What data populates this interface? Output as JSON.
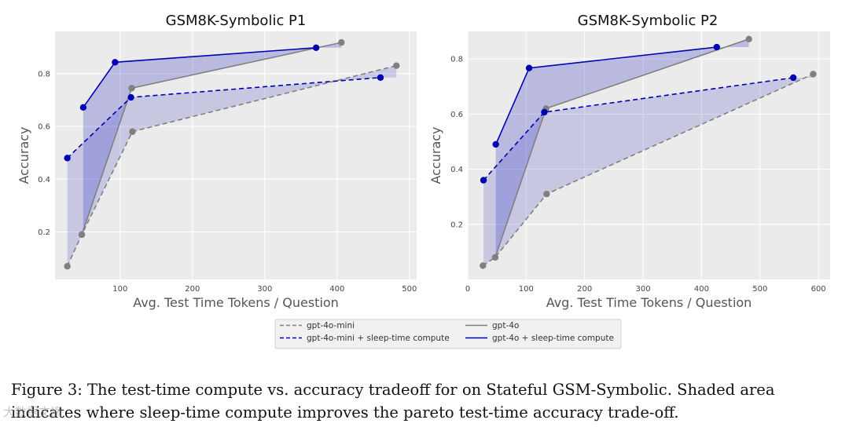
{
  "chart_data": [
    {
      "type": "line",
      "title": "GSM8K-Symbolic P1",
      "xlabel": "Avg. Test Time Tokens / Question",
      "ylabel": "Accuracy",
      "xlim": [
        10,
        510
      ],
      "ylim": [
        0.02,
        0.96
      ],
      "xticks": [
        100,
        200,
        300,
        400,
        500
      ],
      "yticks": [
        0.2,
        0.4,
        0.6,
        0.8
      ],
      "grid": true,
      "series": [
        {
          "name": "gpt-4o-mini",
          "color": "#808080",
          "dash": true,
          "x": [
            27,
            47,
            117,
            482
          ],
          "y": [
            0.07,
            0.19,
            0.58,
            0.83
          ]
        },
        {
          "name": "gpt-4o",
          "color": "#808080",
          "dash": false,
          "x": [
            47,
            116,
            406
          ],
          "y": [
            0.19,
            0.745,
            0.918
          ]
        },
        {
          "name": "gpt-4o-mini + sleep-time compute",
          "color": "#0000b3",
          "dash": true,
          "x": [
            27,
            115,
            460
          ],
          "y": [
            0.48,
            0.71,
            0.785
          ]
        },
        {
          "name": "gpt-4o + sleep-time compute",
          "color": "#0000b3",
          "dash": false,
          "x": [
            49,
            93,
            371
          ],
          "y": [
            0.672,
            0.843,
            0.898
          ]
        }
      ]
    },
    {
      "type": "line",
      "title": "GSM8K-Symbolic P2",
      "xlabel": "Avg. Test Time Tokens / Question",
      "ylabel": "Accuracy",
      "xlim": [
        0,
        620
      ],
      "ylim": [
        0.0,
        0.9
      ],
      "xticks": [
        0,
        100,
        200,
        300,
        400,
        500,
        600
      ],
      "yticks": [
        0.2,
        0.4,
        0.6,
        0.8
      ],
      "grid": true,
      "series": [
        {
          "name": "gpt-4o-mini",
          "color": "#808080",
          "dash": true,
          "x": [
            26,
            47,
            135,
            591
          ],
          "y": [
            0.05,
            0.08,
            0.31,
            0.745
          ]
        },
        {
          "name": "gpt-4o",
          "color": "#808080",
          "dash": false,
          "x": [
            47,
            134,
            481
          ],
          "y": [
            0.08,
            0.62,
            0.872
          ]
        },
        {
          "name": "gpt-4o-mini + sleep-time compute",
          "color": "#0000b3",
          "dash": true,
          "x": [
            27,
            131,
            557
          ],
          "y": [
            0.36,
            0.607,
            0.732
          ]
        },
        {
          "name": "gpt-4o + sleep-time compute",
          "color": "#0000b3",
          "dash": false,
          "x": [
            48,
            105,
            426
          ],
          "y": [
            0.49,
            0.767,
            0.843
          ]
        }
      ]
    }
  ],
  "legend": {
    "placement": "bottom-center",
    "items": [
      {
        "label": "gpt-4o-mini",
        "color": "#808080",
        "dash": true
      },
      {
        "label": "gpt-4o-mini + sleep-time compute",
        "color": "#0000b3",
        "dash": true
      },
      {
        "label": "gpt-4o",
        "color": "#808080",
        "dash": false
      },
      {
        "label": "gpt-4o + sleep-time compute",
        "color": "#0000b3",
        "dash": false
      }
    ]
  },
  "caption": "Figure 3: The test-time compute vs. accuracy tradeoff for on Stateful GSM-Symbolic. Shaded area indicates where sleep-time compute improves the pareto test-time accuracy trade-off.",
  "watermark": "大数据文摘"
}
